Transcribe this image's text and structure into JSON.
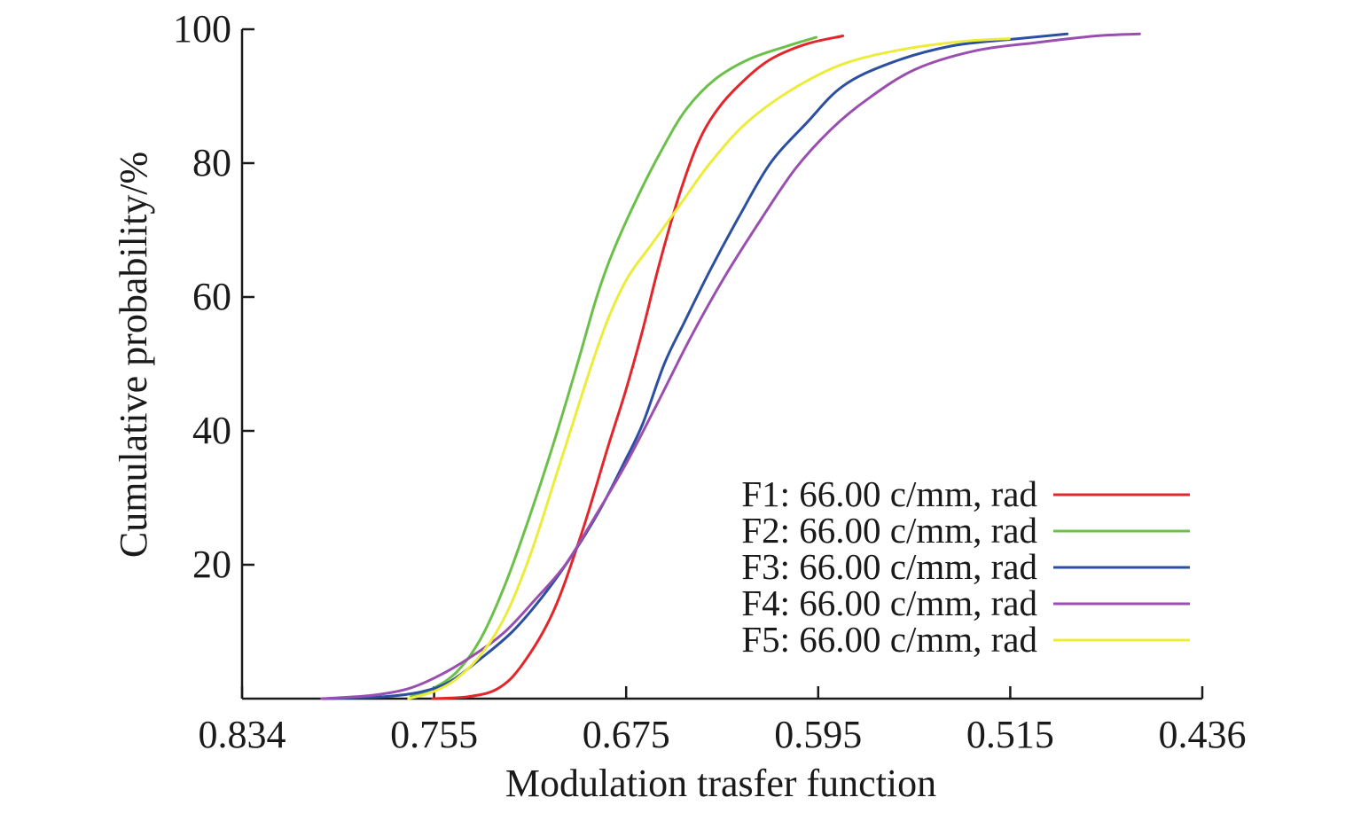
{
  "chart_data": {
    "type": "line",
    "xlabel": "Modulation trasfer function",
    "ylabel": "Cumulative probability/%",
    "x_reversed": true,
    "xlim": [
      0.834,
      0.436
    ],
    "ylim": [
      0,
      100
    ],
    "x_ticks": [
      "0.834",
      "0.755",
      "0.675",
      "0.595",
      "0.515",
      "0.436"
    ],
    "y_ticks": [
      "20",
      "40",
      "60",
      "80",
      "100"
    ],
    "grid": false,
    "legend_position": "bottom-right",
    "series": [
      {
        "name": "F1: 66.00 c/mm, rad",
        "color": "#e3262b",
        "points": [
          [
            0.755,
            0
          ],
          [
            0.74,
            0.3
          ],
          [
            0.728,
            1.5
          ],
          [
            0.718,
            5
          ],
          [
            0.705,
            13
          ],
          [
            0.693,
            25
          ],
          [
            0.682,
            38
          ],
          [
            0.675,
            46
          ],
          [
            0.668,
            55
          ],
          [
            0.661,
            65
          ],
          [
            0.653,
            75
          ],
          [
            0.645,
            83
          ],
          [
            0.637,
            88
          ],
          [
            0.627,
            92
          ],
          [
            0.615,
            95.5
          ],
          [
            0.6,
            97.8
          ],
          [
            0.585,
            99
          ]
        ]
      },
      {
        "name": "F2: 66.00 c/mm, rad",
        "color": "#6cc04a",
        "points": [
          [
            0.764,
            0.3
          ],
          [
            0.755,
            1.5
          ],
          [
            0.745,
            4
          ],
          [
            0.735,
            9
          ],
          [
            0.725,
            17
          ],
          [
            0.715,
            27
          ],
          [
            0.705,
            38
          ],
          [
            0.695,
            50
          ],
          [
            0.687,
            60
          ],
          [
            0.68,
            67
          ],
          [
            0.67,
            75
          ],
          [
            0.66,
            82
          ],
          [
            0.65,
            88
          ],
          [
            0.638,
            92.5
          ],
          [
            0.624,
            95.5
          ],
          [
            0.608,
            97.5
          ],
          [
            0.596,
            98.8
          ]
        ]
      },
      {
        "name": "F3: 66.00 c/mm, rad",
        "color": "#2c4fa1",
        "points": [
          [
            0.8,
            0
          ],
          [
            0.775,
            0.3
          ],
          [
            0.76,
            1
          ],
          [
            0.748,
            2.5
          ],
          [
            0.735,
            6
          ],
          [
            0.722,
            10
          ],
          [
            0.71,
            15
          ],
          [
            0.698,
            21
          ],
          [
            0.686,
            28
          ],
          [
            0.676,
            35
          ],
          [
            0.668,
            41
          ],
          [
            0.659,
            50
          ],
          [
            0.651,
            56
          ],
          [
            0.64,
            64
          ],
          [
            0.628,
            72
          ],
          [
            0.615,
            80
          ],
          [
            0.6,
            86
          ],
          [
            0.585,
            91.5
          ],
          [
            0.565,
            95
          ],
          [
            0.54,
            97.5
          ],
          [
            0.515,
            98.5
          ],
          [
            0.492,
            99.3
          ]
        ]
      },
      {
        "name": "F4: 66.00 c/mm, rad",
        "color": "#9a4fb0",
        "points": [
          [
            0.801,
            0
          ],
          [
            0.78,
            0.5
          ],
          [
            0.765,
            1.5
          ],
          [
            0.752,
            3.5
          ],
          [
            0.738,
            6.5
          ],
          [
            0.725,
            10
          ],
          [
            0.712,
            15
          ],
          [
            0.7,
            20
          ],
          [
            0.688,
            27
          ],
          [
            0.675,
            35
          ],
          [
            0.662,
            44
          ],
          [
            0.648,
            54
          ],
          [
            0.634,
            63
          ],
          [
            0.62,
            71
          ],
          [
            0.605,
            79
          ],
          [
            0.59,
            85
          ],
          [
            0.575,
            89.5
          ],
          [
            0.555,
            94
          ],
          [
            0.53,
            96.8
          ],
          [
            0.505,
            98
          ],
          [
            0.48,
            99
          ],
          [
            0.462,
            99.3
          ]
        ]
      },
      {
        "name": "F5: 66.00 c/mm, rad",
        "color": "#ecec3c",
        "points": [
          [
            0.765,
            0
          ],
          [
            0.755,
            1
          ],
          [
            0.745,
            3
          ],
          [
            0.734,
            7
          ],
          [
            0.724,
            13
          ],
          [
            0.714,
            22
          ],
          [
            0.705,
            32
          ],
          [
            0.697,
            41
          ],
          [
            0.689,
            50
          ],
          [
            0.682,
            57
          ],
          [
            0.674,
            63
          ],
          [
            0.664,
            68
          ],
          [
            0.652,
            74
          ],
          [
            0.64,
            80
          ],
          [
            0.625,
            86
          ],
          [
            0.606,
            91
          ],
          [
            0.585,
            94.8
          ],
          [
            0.56,
            97
          ],
          [
            0.535,
            98.2
          ],
          [
            0.516,
            98.6
          ]
        ]
      }
    ]
  }
}
